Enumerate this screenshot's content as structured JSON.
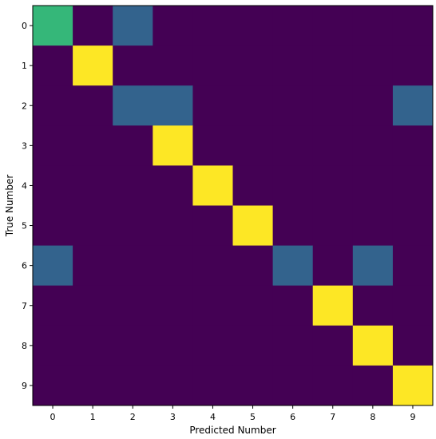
{
  "chart_data": {
    "type": "heatmap",
    "title": "",
    "xlabel": "Predicted Number",
    "ylabel": "True Number",
    "x_categories": [
      "0",
      "1",
      "2",
      "3",
      "4",
      "5",
      "6",
      "7",
      "8",
      "9"
    ],
    "y_categories": [
      "0",
      "1",
      "2",
      "3",
      "4",
      "5",
      "6",
      "7",
      "8",
      "9"
    ],
    "colormap": "viridis",
    "vmin": 0,
    "vmax": 1,
    "grid": false,
    "values": [
      [
        0.67,
        0,
        0.33,
        0,
        0,
        0,
        0,
        0,
        0,
        0
      ],
      [
        0,
        1,
        0,
        0,
        0,
        0,
        0,
        0,
        0,
        0
      ],
      [
        0,
        0,
        0.33,
        0.33,
        0,
        0,
        0,
        0,
        0,
        0.33
      ],
      [
        0,
        0,
        0,
        1,
        0,
        0,
        0,
        0,
        0,
        0
      ],
      [
        0,
        0,
        0,
        0,
        1,
        0,
        0,
        0,
        0,
        0
      ],
      [
        0,
        0,
        0,
        0,
        0,
        1,
        0,
        0,
        0,
        0
      ],
      [
        0.33,
        0,
        0,
        0,
        0,
        0,
        0.33,
        0,
        0.33,
        0
      ],
      [
        0,
        0,
        0,
        0,
        0,
        0,
        0,
        1,
        0,
        0
      ],
      [
        0,
        0,
        0,
        0,
        0,
        0,
        0,
        0,
        1,
        0
      ],
      [
        0,
        0,
        0,
        0,
        0,
        0,
        0,
        0,
        0,
        1
      ]
    ]
  }
}
